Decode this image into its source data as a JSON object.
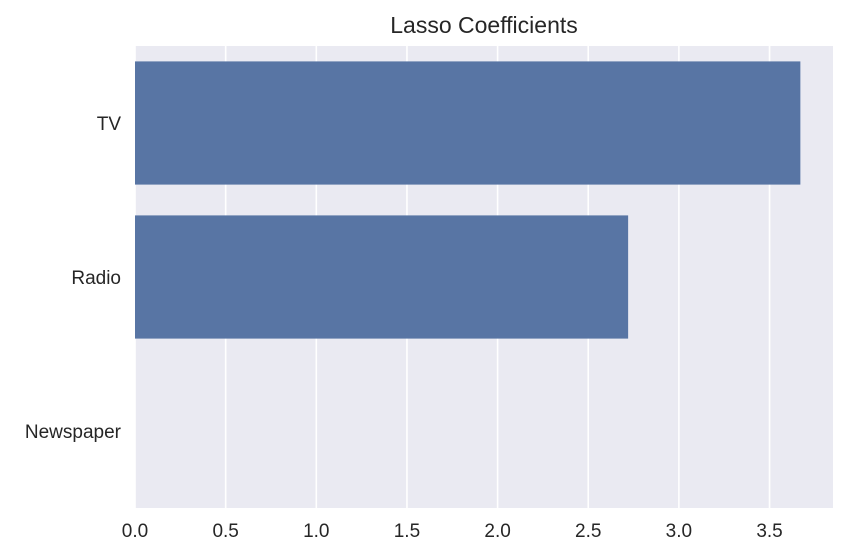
{
  "chart_data": {
    "type": "bar",
    "orientation": "horizontal",
    "title": "Lasso Coefficients",
    "xlabel": "",
    "ylabel": "",
    "categories": [
      "TV",
      "Radio",
      "Newspaper"
    ],
    "values": [
      3.67,
      2.72,
      0.0
    ],
    "xlim": [
      0,
      3.85
    ],
    "xticks": [
      0.0,
      0.5,
      1.0,
      1.5,
      2.0,
      2.5,
      3.0,
      3.5
    ],
    "xtick_labels": [
      "0.0",
      "0.5",
      "1.0",
      "1.5",
      "2.0",
      "2.5",
      "3.0",
      "3.5"
    ],
    "grid": true,
    "bar_color": "#5875a4",
    "plot_background": "#eaeaf2",
    "grid_color": "#ffffff"
  }
}
